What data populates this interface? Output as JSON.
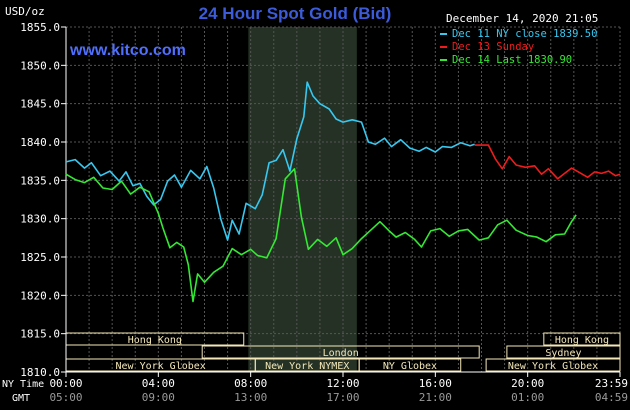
{
  "chart_data": {
    "type": "line",
    "title": "24 Hour Spot Gold (Bid)",
    "watermark": "www.kitco.com",
    "timestamp": "December 14, 2020 21:05",
    "ylabel": "USD/oz",
    "ylim": [
      1810,
      1855
    ],
    "yticks": [
      "1855.0",
      "1850.0",
      "1845.0",
      "1840.0",
      "1835.0",
      "1830.0",
      "1825.0",
      "1820.0",
      "1815.0",
      "1810.0"
    ],
    "xlim": [
      0,
      24
    ],
    "xticks_ny": [
      "00:00",
      "04:00",
      "08:00",
      "12:00",
      "16:00",
      "20:00",
      "23:59"
    ],
    "xticks_gmt": [
      "05:00",
      "09:00",
      "13:00",
      "17:00",
      "21:00",
      "01:00",
      "04:59"
    ],
    "x_row_label_ny": "NY Time",
    "x_row_label_gmt": "GMT",
    "grid": true,
    "legend_position": "top-right",
    "colors": {
      "background": "#000000",
      "axis": "#ffffff",
      "grid": "#555555",
      "highlight": "#243124",
      "title": "#3b5bdb",
      "watermark": "#4f6fff",
      "market_box": "#f3e7b8",
      "market_text": "#000000"
    },
    "highlight_range": [
      7.9,
      12.6
    ],
    "series": [
      {
        "name": "Dec 11 NY close 1839.50",
        "color": "#37c8f0",
        "points": [
          [
            0,
            1837.4
          ],
          [
            0.4,
            1837.7
          ],
          [
            0.8,
            1836.6
          ],
          [
            1.1,
            1837.3
          ],
          [
            1.5,
            1835.6
          ],
          [
            1.9,
            1836.2
          ],
          [
            2.3,
            1834.9
          ],
          [
            2.6,
            1836.1
          ],
          [
            2.9,
            1834.3
          ],
          [
            3.2,
            1834.6
          ],
          [
            3.5,
            1832.9
          ],
          [
            3.8,
            1831.8
          ],
          [
            4.1,
            1832.5
          ],
          [
            4.4,
            1834.9
          ],
          [
            4.7,
            1835.7
          ],
          [
            5.0,
            1834.1
          ],
          [
            5.4,
            1836.3
          ],
          [
            5.8,
            1835.2
          ],
          [
            6.1,
            1836.8
          ],
          [
            6.4,
            1834.0
          ],
          [
            6.7,
            1830.0
          ],
          [
            7.0,
            1827.2
          ],
          [
            7.2,
            1829.8
          ],
          [
            7.5,
            1828.0
          ],
          [
            7.8,
            1832.0
          ],
          [
            8.2,
            1831.3
          ],
          [
            8.5,
            1833.1
          ],
          [
            8.8,
            1837.3
          ],
          [
            9.1,
            1837.6
          ],
          [
            9.4,
            1839.0
          ],
          [
            9.7,
            1836.2
          ],
          [
            10.0,
            1840.4
          ],
          [
            10.3,
            1843.3
          ],
          [
            10.45,
            1847.8
          ],
          [
            10.7,
            1846.0
          ],
          [
            11.0,
            1845.0
          ],
          [
            11.4,
            1844.3
          ],
          [
            11.7,
            1843.0
          ],
          [
            12.0,
            1842.6
          ],
          [
            12.4,
            1842.9
          ],
          [
            12.8,
            1842.6
          ],
          [
            13.1,
            1840.0
          ],
          [
            13.4,
            1839.7
          ],
          [
            13.8,
            1840.5
          ],
          [
            14.1,
            1839.4
          ],
          [
            14.5,
            1840.3
          ],
          [
            14.9,
            1839.2
          ],
          [
            15.3,
            1838.8
          ],
          [
            15.6,
            1839.3
          ],
          [
            16.0,
            1838.7
          ],
          [
            16.3,
            1839.4
          ],
          [
            16.7,
            1839.3
          ],
          [
            17.1,
            1839.9
          ],
          [
            17.5,
            1839.5
          ],
          [
            17.7,
            1839.7
          ]
        ]
      },
      {
        "name": "Dec 13 Sunday",
        "color": "#ee1c1c",
        "points": [
          [
            17.7,
            1839.6
          ],
          [
            18.3,
            1839.6
          ],
          [
            18.6,
            1837.8
          ],
          [
            18.9,
            1836.5
          ],
          [
            19.2,
            1838.1
          ],
          [
            19.5,
            1837.0
          ],
          [
            19.9,
            1836.7
          ],
          [
            20.3,
            1836.9
          ],
          [
            20.6,
            1835.8
          ],
          [
            20.9,
            1836.5
          ],
          [
            21.3,
            1835.2
          ],
          [
            21.6,
            1835.9
          ],
          [
            21.9,
            1836.6
          ],
          [
            22.2,
            1836.1
          ],
          [
            22.6,
            1835.4
          ],
          [
            22.9,
            1836.1
          ],
          [
            23.2,
            1835.9
          ],
          [
            23.5,
            1836.2
          ],
          [
            23.8,
            1835.6
          ],
          [
            24.0,
            1835.8
          ]
        ]
      },
      {
        "name": "Dec 14 Last 1830.90",
        "color": "#34e834",
        "points": [
          [
            0,
            1835.8
          ],
          [
            0.4,
            1835.1
          ],
          [
            0.8,
            1834.7
          ],
          [
            1.2,
            1835.4
          ],
          [
            1.6,
            1834.0
          ],
          [
            2.0,
            1833.8
          ],
          [
            2.4,
            1834.9
          ],
          [
            2.8,
            1833.2
          ],
          [
            3.2,
            1834.1
          ],
          [
            3.6,
            1833.5
          ],
          [
            4.0,
            1830.7
          ],
          [
            4.2,
            1828.8
          ],
          [
            4.5,
            1826.2
          ],
          [
            4.8,
            1826.9
          ],
          [
            5.1,
            1826.3
          ],
          [
            5.3,
            1824.0
          ],
          [
            5.5,
            1819.2
          ],
          [
            5.7,
            1822.8
          ],
          [
            6.0,
            1821.7
          ],
          [
            6.4,
            1823.0
          ],
          [
            6.8,
            1823.8
          ],
          [
            7.2,
            1826.1
          ],
          [
            7.6,
            1825.3
          ],
          [
            8.0,
            1826.0
          ],
          [
            8.3,
            1825.2
          ],
          [
            8.7,
            1824.9
          ],
          [
            9.1,
            1827.4
          ],
          [
            9.5,
            1835.2
          ],
          [
            9.9,
            1836.5
          ],
          [
            10.2,
            1830.2
          ],
          [
            10.5,
            1826.0
          ],
          [
            10.9,
            1827.3
          ],
          [
            11.3,
            1826.4
          ],
          [
            11.7,
            1827.5
          ],
          [
            12.0,
            1825.3
          ],
          [
            12.4,
            1826.1
          ],
          [
            12.8,
            1827.4
          ],
          [
            13.2,
            1828.5
          ],
          [
            13.6,
            1829.6
          ],
          [
            14.0,
            1828.4
          ],
          [
            14.3,
            1827.6
          ],
          [
            14.7,
            1828.2
          ],
          [
            15.1,
            1827.3
          ],
          [
            15.4,
            1826.3
          ],
          [
            15.8,
            1828.4
          ],
          [
            16.2,
            1828.7
          ],
          [
            16.6,
            1827.7
          ],
          [
            17.0,
            1828.4
          ],
          [
            17.4,
            1828.6
          ],
          [
            17.9,
            1827.2
          ],
          [
            18.3,
            1827.5
          ],
          [
            18.7,
            1829.2
          ],
          [
            19.1,
            1829.8
          ],
          [
            19.5,
            1828.5
          ],
          [
            20.0,
            1827.8
          ],
          [
            20.4,
            1827.6
          ],
          [
            20.8,
            1827.0
          ],
          [
            21.2,
            1827.9
          ],
          [
            21.6,
            1828.0
          ],
          [
            21.9,
            1829.6
          ],
          [
            22.1,
            1830.5
          ]
        ]
      }
    ],
    "market_rows": [
      [
        {
          "label": "Hong Kong",
          "start": -1.2,
          "end": 7.7
        },
        {
          "label": "Hong Kong",
          "start": 20.7,
          "end": 24.0
        }
      ],
      [
        {
          "label": "London",
          "start": 5.9,
          "end": 17.9
        },
        {
          "label": "Sydney",
          "start": 19.1,
          "end": 24.0
        }
      ],
      [
        {
          "label": "New York Globex",
          "start": -1.2,
          "end": 8.2
        },
        {
          "label": "New York NYMEX",
          "start": 8.2,
          "end": 12.7
        },
        {
          "label": "NY Globex",
          "start": 12.7,
          "end": 17.1
        },
        {
          "label": "New York Globex",
          "start": 18.2,
          "end": 24.0
        }
      ]
    ]
  }
}
